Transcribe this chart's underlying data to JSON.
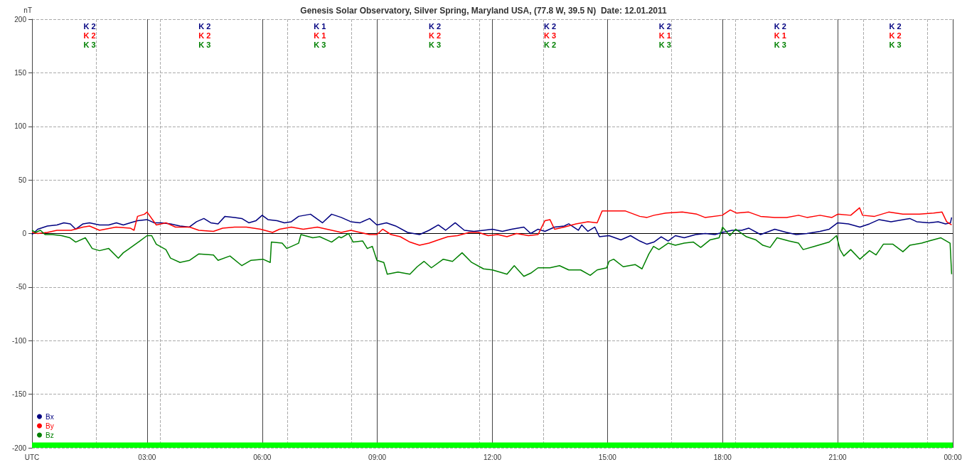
{
  "chart_data": {
    "type": "line",
    "title": "Genesis Solar Observatory, Silver Spring, Maryland USA, (77.8 W, 39.5 N)  Date: 12.01.2011",
    "ylabel": "nT",
    "xlim": [
      0,
      24
    ],
    "xticks": [
      {
        "value": 0,
        "label": "UTC"
      },
      {
        "value": 3,
        "label": "03:00"
      },
      {
        "value": 6,
        "label": "06:00"
      },
      {
        "value": 9,
        "label": "09:00"
      },
      {
        "value": 12,
        "label": "12:00"
      },
      {
        "value": 15,
        "label": "15:00"
      },
      {
        "value": 18,
        "label": "18:00"
      },
      {
        "value": 21,
        "label": "21:00"
      },
      {
        "value": 24,
        "label": "00:00"
      }
    ],
    "ylim": [
      -200,
      200
    ],
    "yticks": [
      -200,
      -150,
      -100,
      -50,
      0,
      50,
      100,
      150,
      200
    ],
    "grid": true,
    "legend": "bottom left",
    "marker": "none",
    "line_style": "solid",
    "ref_lines": [
      {
        "axis": "y",
        "value": 0,
        "color": "#000000"
      }
    ],
    "bands": [
      {
        "axis": "y",
        "from": -200,
        "to": -195,
        "color": "#00ff00"
      }
    ],
    "annotations": [
      "K 2",
      "K 2",
      "K 3",
      "K 2",
      "K 2",
      "K 3",
      "K 1",
      "K 1",
      "K 3",
      "K 2",
      "K 2",
      "K 3",
      "K 2",
      "K 3",
      "K 2",
      "K 2",
      "K 1",
      "K 3",
      "K 2",
      "K 1",
      "K 3",
      "K 2",
      "K 2",
      "K 3"
    ],
    "series": [
      {
        "name": "Bx",
        "color": "#000080",
        "x": [
          0,
          0.15,
          0.4,
          0.65,
          0.83,
          1.0,
          1.14,
          1.33,
          1.5,
          1.76,
          2.0,
          2.2,
          2.38,
          2.56,
          2.75,
          3.0,
          3.18,
          3.37,
          3.61,
          3.86,
          4.1,
          4.29,
          4.48,
          4.66,
          4.85,
          5.03,
          5.28,
          5.47,
          5.65,
          5.84,
          6.0,
          6.15,
          6.39,
          6.58,
          6.76,
          6.95,
          7.26,
          7.57,
          7.81,
          8.06,
          8.31,
          8.55,
          8.8,
          8.99,
          9.24,
          9.48,
          9.79,
          10.1,
          10.35,
          10.59,
          10.78,
          11.03,
          11.27,
          11.52,
          11.77,
          12.0,
          12.26,
          12.5,
          12.82,
          13.0,
          13.19,
          13.37,
          13.62,
          13.87,
          13.99,
          14.24,
          14.33,
          14.49,
          14.67,
          14.79,
          15.04,
          15.35,
          15.6,
          15.84,
          16.03,
          16.21,
          16.4,
          16.58,
          16.77,
          17.0,
          17.3,
          17.55,
          17.8,
          17.99,
          18.25,
          18.5,
          18.68,
          18.99,
          19.36,
          19.67,
          19.92,
          20.2,
          20.54,
          20.78,
          21.0,
          21.28,
          21.58,
          21.83,
          22.08,
          22.39,
          22.88,
          23.06,
          23.38,
          23.62,
          23.81,
          23.94,
          23.97
        ],
        "values": [
          -1,
          4,
          7,
          8,
          10,
          9,
          4,
          9,
          10,
          8,
          8,
          10,
          8,
          10,
          12,
          13,
          10,
          10,
          9,
          7,
          6,
          11,
          14,
          10,
          9,
          16,
          15,
          14,
          10,
          12,
          17,
          13,
          12,
          10,
          11,
          16,
          18,
          10,
          18,
          15,
          11,
          10,
          14,
          8,
          10,
          7,
          1,
          -1,
          3,
          8,
          3,
          10,
          3,
          2,
          3,
          4,
          2,
          4,
          6,
          0,
          4,
          2,
          6,
          7,
          9,
          3,
          8,
          2,
          6,
          -3,
          -2,
          -6,
          -2,
          -7,
          -10,
          -8,
          -3,
          -7,
          -2,
          -4,
          -1,
          0,
          -1,
          1,
          3,
          3,
          5,
          -1,
          4,
          1,
          -1,
          0,
          2,
          4,
          10,
          9,
          6,
          9,
          13,
          11,
          14,
          11,
          10,
          11,
          9,
          10,
          15
        ]
      },
      {
        "name": "By",
        "color": "#ff0000",
        "x": [
          0,
          0.15,
          0.4,
          0.65,
          1.02,
          1.33,
          1.5,
          1.76,
          2.19,
          2.56,
          2.66,
          2.75,
          2.93,
          3.0,
          3.24,
          3.49,
          3.74,
          4.11,
          4.35,
          4.73,
          4.97,
          5.28,
          5.59,
          5.96,
          6.27,
          6.45,
          6.76,
          7.07,
          7.44,
          7.69,
          7.94,
          8.06,
          8.31,
          8.55,
          8.8,
          8.99,
          9.14,
          9.36,
          9.6,
          9.85,
          10.1,
          10.35,
          10.59,
          10.84,
          11.09,
          11.4,
          11.64,
          11.89,
          12.14,
          12.38,
          12.63,
          12.94,
          13.19,
          13.37,
          13.5,
          13.62,
          13.87,
          14.18,
          14.49,
          14.73,
          14.86,
          15.1,
          15.47,
          15.84,
          16.03,
          16.21,
          16.52,
          16.95,
          17.33,
          17.54,
          17.99,
          18.2,
          18.37,
          18.68,
          18.99,
          19.36,
          19.67,
          19.98,
          20.2,
          20.54,
          20.85,
          21.0,
          21.34,
          21.57,
          21.65,
          21.96,
          22.33,
          22.7,
          23.13,
          23.5,
          23.72,
          23.84,
          23.97
        ],
        "values": [
          1,
          0,
          1,
          3,
          3,
          6,
          7,
          3,
          6,
          5,
          3,
          16,
          18,
          20,
          8,
          10,
          6,
          6,
          3,
          2,
          5,
          6,
          6,
          4,
          1,
          4,
          6,
          4,
          6,
          4,
          2,
          1,
          3,
          1,
          -1,
          -1,
          4,
          -1,
          -3,
          -8,
          -11,
          -9,
          -6,
          -3,
          -2,
          1,
          1,
          -2,
          -1,
          -3,
          0,
          -2,
          -1,
          12,
          13,
          4,
          6,
          9,
          11,
          10,
          21,
          21,
          21,
          16,
          15,
          17,
          19,
          20,
          18,
          15,
          17,
          22,
          19,
          20,
          16,
          15,
          15,
          17,
          15,
          17,
          15,
          18,
          17,
          24,
          17,
          16,
          20,
          18,
          18,
          19,
          20,
          11,
          8
        ]
      },
      {
        "name": "Bz",
        "color": "#008000",
        "x": [
          0,
          0.09,
          0.22,
          0.34,
          0.53,
          0.77,
          0.99,
          1.14,
          1.39,
          1.57,
          1.76,
          2.0,
          2.25,
          2.38,
          2.5,
          2.81,
          3.0,
          3.12,
          3.24,
          3.49,
          3.61,
          3.86,
          4.11,
          4.35,
          4.73,
          4.85,
          5.16,
          5.47,
          5.71,
          6.02,
          6.21,
          6.24,
          6.52,
          6.64,
          6.95,
          7.01,
          7.32,
          7.5,
          7.81,
          8.0,
          8.06,
          8.25,
          8.37,
          8.62,
          8.74,
          8.87,
          8.99,
          9.17,
          9.26,
          9.54,
          9.85,
          10.04,
          10.22,
          10.41,
          10.72,
          10.96,
          11.21,
          11.46,
          11.77,
          12.0,
          12.38,
          12.57,
          12.82,
          13.0,
          13.19,
          13.5,
          13.75,
          13.99,
          14.3,
          14.55,
          14.73,
          14.98,
          15.04,
          15.16,
          15.41,
          15.72,
          15.9,
          16.08,
          16.2,
          16.34,
          16.58,
          16.77,
          17.0,
          17.24,
          17.43,
          17.67,
          17.91,
          18.0,
          18.19,
          18.34,
          18.62,
          18.87,
          19.05,
          19.24,
          19.42,
          19.73,
          19.98,
          20.1,
          20.4,
          20.78,
          20.97,
          21.06,
          21.16,
          21.34,
          21.58,
          21.83,
          22.0,
          22.19,
          22.44,
          22.7,
          22.88,
          23.19,
          23.38,
          23.69,
          23.93,
          23.97
        ],
        "values": [
          3,
          1,
          3,
          -1,
          -1,
          -2,
          -4,
          -8,
          -4,
          -14,
          -16,
          -14,
          -23,
          -18,
          -15,
          -7,
          -2,
          -2,
          -10,
          -15,
          -23,
          -27,
          -25,
          -19,
          -20,
          -25,
          -21,
          -30,
          -25,
          -24,
          -27,
          -8,
          -9,
          -14,
          -9,
          -1,
          -4,
          -3,
          -8,
          -3,
          -4,
          0,
          -8,
          -7,
          -14,
          -12,
          -25,
          -27,
          -38,
          -36,
          -38,
          -31,
          -26,
          -32,
          -24,
          -26,
          -18,
          -27,
          -33,
          -34,
          -38,
          -30,
          -40,
          -37,
          -32,
          -32,
          -30,
          -34,
          -34,
          -39,
          -34,
          -32,
          -26,
          -24,
          -31,
          -29,
          -33,
          -19,
          -12,
          -15,
          -9,
          -11,
          -9,
          -8,
          -13,
          -6,
          -4,
          6,
          -2,
          4,
          -3,
          -6,
          -11,
          -13,
          -4,
          -7,
          -9,
          -15,
          -12,
          -8,
          -2,
          -15,
          -21,
          -15,
          -24,
          -16,
          -20,
          -10,
          -10,
          -17,
          -11,
          -9,
          -7,
          -4,
          -9,
          -38
        ]
      }
    ]
  }
}
